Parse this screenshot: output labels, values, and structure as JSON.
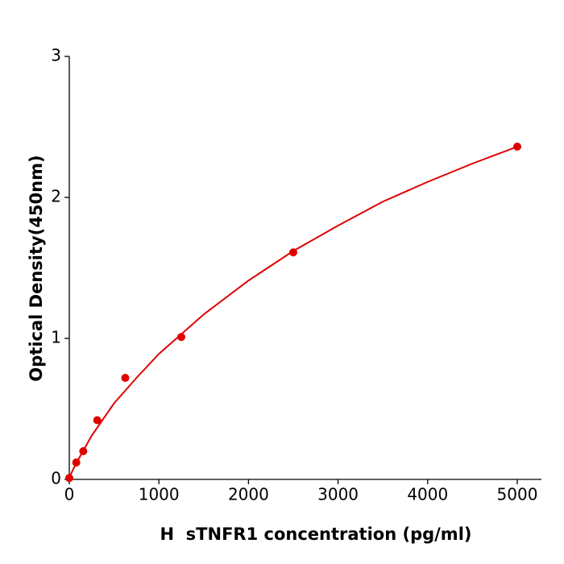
{
  "chart_data": {
    "type": "scatter",
    "xlabel": "H  sTNFR1 concentration (pg/ml)",
    "ylabel": "Optical Density(450nm)",
    "xlim": [
      0,
      5270
    ],
    "ylim": [
      0,
      3
    ],
    "xticks": [
      0,
      1000,
      2000,
      3000,
      4000,
      5000
    ],
    "yticks": [
      0,
      1,
      2,
      3
    ],
    "grid": false,
    "series": [
      {
        "style": "markers",
        "color": "#e00000",
        "x": [
          0,
          78,
          156,
          312,
          625,
          1250,
          2500,
          5000
        ],
        "values": [
          0.01,
          0.12,
          0.2,
          0.42,
          0.72,
          1.01,
          1.61,
          2.36
        ]
      },
      {
        "style": "line",
        "color": "#e00000",
        "x": [
          0,
          20,
          50,
          100,
          250,
          500,
          750,
          1000,
          1500,
          2000,
          2500,
          3000,
          3500,
          4000,
          4500,
          5000
        ],
        "values": [
          0,
          0.04,
          0.08,
          0.14,
          0.31,
          0.54,
          0.72,
          0.89,
          1.17,
          1.41,
          1.62,
          1.8,
          1.97,
          2.11,
          2.24,
          2.36
        ]
      }
    ]
  }
}
